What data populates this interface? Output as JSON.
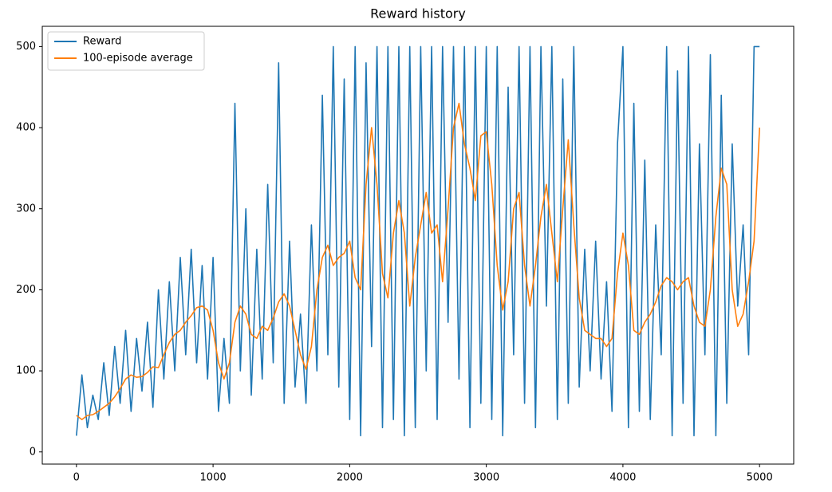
{
  "chart_data": {
    "type": "line",
    "title": "Reward history",
    "x": [
      0,
      40,
      80,
      120,
      160,
      200,
      240,
      280,
      320,
      360,
      400,
      440,
      480,
      520,
      560,
      600,
      640,
      680,
      720,
      760,
      800,
      840,
      880,
      920,
      960,
      1000,
      1040,
      1080,
      1120,
      1160,
      1200,
      1240,
      1280,
      1320,
      1360,
      1400,
      1440,
      1480,
      1520,
      1560,
      1600,
      1640,
      1680,
      1720,
      1760,
      1800,
      1840,
      1880,
      1920,
      1960,
      2000,
      2040,
      2080,
      2120,
      2160,
      2200,
      2240,
      2280,
      2320,
      2360,
      2400,
      2440,
      2480,
      2520,
      2560,
      2600,
      2640,
      2680,
      2720,
      2760,
      2800,
      2840,
      2880,
      2920,
      2960,
      3000,
      3040,
      3080,
      3120,
      3160,
      3200,
      3240,
      3280,
      3320,
      3360,
      3400,
      3440,
      3480,
      3520,
      3560,
      3600,
      3640,
      3680,
      3720,
      3760,
      3800,
      3840,
      3880,
      3920,
      3960,
      4000,
      4040,
      4080,
      4120,
      4160,
      4200,
      4240,
      4280,
      4320,
      4360,
      4400,
      4440,
      4480,
      4520,
      4560,
      4600,
      4640,
      4680,
      4720,
      4760,
      4800,
      4840,
      4880,
      4920,
      4960,
      5000
    ],
    "series": [
      {
        "name": "Reward",
        "color": "#1f77b4",
        "values": [
          20,
          95,
          30,
          70,
          40,
          110,
          45,
          130,
          60,
          150,
          50,
          140,
          75,
          160,
          55,
          200,
          90,
          210,
          100,
          240,
          120,
          250,
          110,
          230,
          90,
          240,
          50,
          140,
          60,
          430,
          100,
          300,
          70,
          250,
          90,
          330,
          110,
          480,
          60,
          260,
          80,
          170,
          60,
          280,
          100,
          440,
          120,
          500,
          80,
          460,
          40,
          500,
          20,
          480,
          130,
          500,
          30,
          500,
          40,
          500,
          20,
          500,
          30,
          500,
          100,
          500,
          40,
          500,
          160,
          500,
          90,
          500,
          30,
          500,
          60,
          500,
          40,
          500,
          20,
          450,
          120,
          500,
          60,
          500,
          30,
          500,
          180,
          500,
          40,
          460,
          60,
          500,
          80,
          250,
          100,
          260,
          90,
          210,
          50,
          380,
          500,
          30,
          430,
          50,
          360,
          40,
          280,
          120,
          500,
          20,
          470,
          60,
          500,
          20,
          380,
          120,
          490,
          20,
          440,
          60,
          380,
          180,
          280,
          120,
          500,
          500
        ]
      },
      {
        "name": "100-episode average",
        "color": "#ff7f0e",
        "values": [
          45,
          40,
          45,
          46,
          50,
          55,
          60,
          68,
          78,
          90,
          95,
          92,
          93,
          98,
          105,
          104,
          120,
          135,
          145,
          150,
          160,
          168,
          178,
          180,
          175,
          150,
          110,
          90,
          110,
          160,
          180,
          170,
          145,
          140,
          155,
          150,
          165,
          185,
          195,
          180,
          150,
          120,
          102,
          130,
          200,
          240,
          255,
          230,
          240,
          245,
          260,
          215,
          200,
          330,
          400,
          330,
          220,
          190,
          270,
          310,
          270,
          180,
          240,
          280,
          320,
          270,
          280,
          210,
          300,
          400,
          430,
          380,
          350,
          310,
          390,
          395,
          330,
          230,
          175,
          210,
          300,
          320,
          230,
          180,
          230,
          290,
          330,
          270,
          210,
          300,
          385,
          280,
          190,
          150,
          145,
          140,
          140,
          130,
          140,
          220,
          270,
          230,
          150,
          145,
          160,
          170,
          185,
          205,
          215,
          210,
          200,
          210,
          215,
          180,
          160,
          155,
          200,
          290,
          350,
          330,
          200,
          155,
          170,
          210,
          260,
          400
        ]
      }
    ],
    "xlim": [
      -250,
      5250
    ],
    "ylim": [
      -15,
      525
    ],
    "xticks": [
      0,
      1000,
      2000,
      3000,
      4000,
      5000
    ],
    "yticks": [
      0,
      100,
      200,
      300,
      400,
      500
    ],
    "grid": false,
    "legend": "upper left"
  }
}
